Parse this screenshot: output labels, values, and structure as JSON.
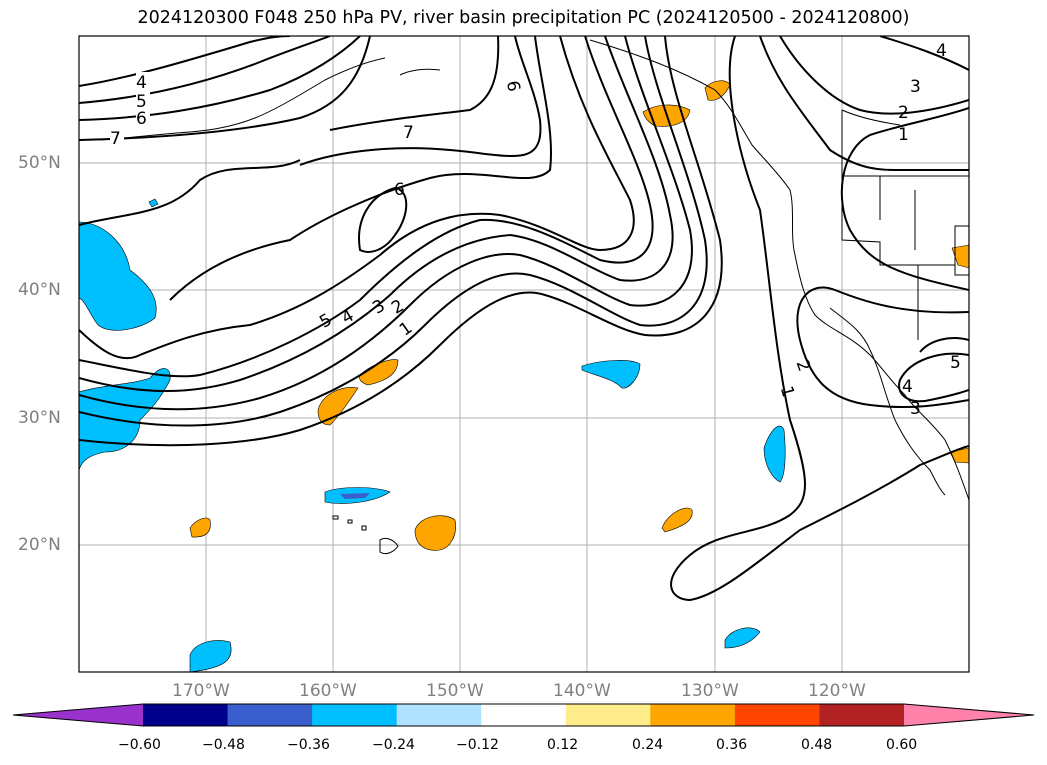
{
  "title": "2024120300 F048 250 hPa PV, river basin precipitation PC (2024120500 - 2024120800)",
  "axes": {
    "lat_labels": [
      "50°N",
      "40°N",
      "30°N",
      "20°N"
    ],
    "lon_labels": [
      "170°W",
      "160°W",
      "150°W",
      "140°W",
      "130°W",
      "120°W"
    ]
  },
  "contour_labels": [
    "4",
    "5",
    "6",
    "7",
    "7",
    "6",
    "6",
    "5",
    "4",
    "3",
    "2",
    "1",
    "1",
    "2",
    "3",
    "4",
    "2",
    "1",
    "3",
    "4",
    "5"
  ],
  "colorbar": {
    "ticks": [
      "−0.60",
      "−0.48",
      "−0.36",
      "−0.24",
      "−0.12",
      "0.12",
      "0.24",
      "0.36",
      "0.48",
      "0.60"
    ],
    "colors": [
      "#9932cc",
      "#00008b",
      "#3a5fcd",
      "#00bfff",
      "#b0e2ff",
      "#ffffff",
      "#ffec8b",
      "#ffa500",
      "#ff4500",
      "#b22222",
      "#ff82ab"
    ]
  }
}
